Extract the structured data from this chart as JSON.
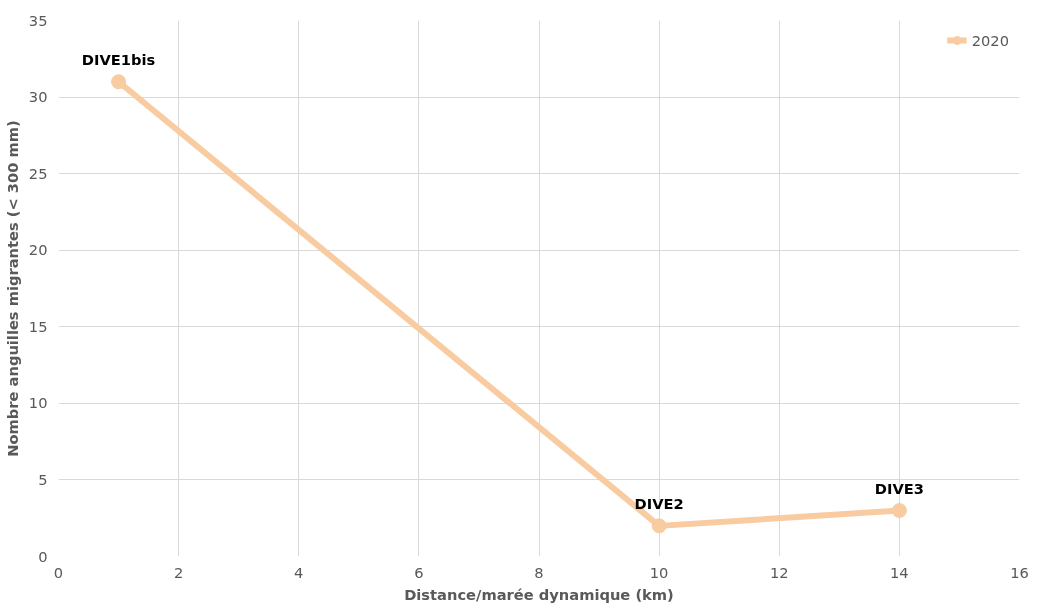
{
  "chart_data": {
    "type": "line",
    "xlabel": "Distance/marée dynamique (km)",
    "ylabel": "Nombre anguilles migrantes (< 300 mm)",
    "x": [
      1,
      10,
      14
    ],
    "series": [
      {
        "name": "2020",
        "color": "#f8cba0",
        "values": [
          31,
          2,
          3
        ]
      }
    ],
    "annotations": [
      {
        "text": "DIVE1bis",
        "x": 1,
        "y": 31
      },
      {
        "text": "DIVE2",
        "x": 10,
        "y": 2
      },
      {
        "text": "DIVE3",
        "x": 14,
        "y": 3
      }
    ],
    "xlim": [
      0,
      16
    ],
    "xticks": [
      0,
      2,
      4,
      6,
      8,
      10,
      12,
      14,
      16
    ],
    "ylim": [
      0,
      35
    ],
    "yticks": [
      0,
      5,
      10,
      15,
      20,
      25,
      30,
      35
    ],
    "grid": true,
    "legend": "top right",
    "marker": "circle",
    "line_style": "solid"
  }
}
